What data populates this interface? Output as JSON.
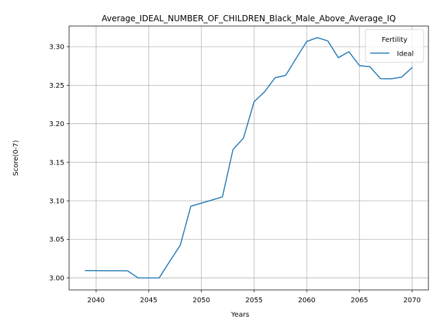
{
  "chart_data": {
    "type": "line",
    "title": "Average_IDEAL_NUMBER_OF_CHILDREN_Black_Male_Above_Average_IQ",
    "xlabel": "Years",
    "ylabel": "Score(0-7)",
    "xlim": [
      2037.45,
      2071.55
    ],
    "ylim": [
      2.9844,
      3.3268
    ],
    "xticks": [
      2040,
      2045,
      2050,
      2055,
      2060,
      2065,
      2070
    ],
    "yticks": [
      3.0,
      3.05,
      3.1,
      3.15,
      3.2,
      3.25,
      3.3
    ],
    "xtick_labels": [
      "2040",
      "2045",
      "2050",
      "2055",
      "2060",
      "2065",
      "2070"
    ],
    "ytick_labels": [
      "3.00",
      "3.05",
      "3.10",
      "3.15",
      "3.20",
      "3.25",
      "3.30"
    ],
    "grid": true,
    "legend": {
      "title": "Fertility",
      "position": "top-right"
    },
    "series": [
      {
        "name": "Ideal",
        "color": "#1f77b4",
        "x": [
          2039,
          2040,
          2041,
          2042,
          2043,
          2044,
          2045,
          2046,
          2047,
          2048,
          2049,
          2050,
          2051,
          2052,
          2053,
          2054,
          2055,
          2056,
          2057,
          2058,
          2059,
          2060,
          2061,
          2062,
          2063,
          2064,
          2065,
          2066,
          2067,
          2068,
          2069,
          2070
        ],
        "y": [
          3.0095,
          3.0094,
          3.0093,
          3.0093,
          3.0092,
          3.0,
          3.0,
          3.0,
          3.0215,
          3.0425,
          3.093,
          3.097,
          3.101,
          3.1052,
          3.1665,
          3.1815,
          3.2285,
          3.2415,
          3.2598,
          3.2628,
          3.285,
          3.3068,
          3.3118,
          3.3075,
          3.2857,
          3.2935,
          3.2756,
          3.274,
          3.2585,
          3.2583,
          3.2605,
          3.2728
        ]
      }
    ]
  }
}
